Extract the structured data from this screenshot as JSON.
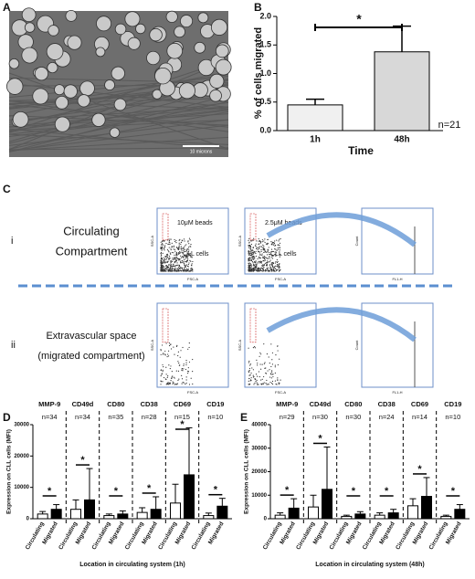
{
  "panel_a": {
    "label": "A",
    "scale_bar": "10 microns"
  },
  "panel_b": {
    "label": "B",
    "type": "bar",
    "ylabel": "% of cells migrated",
    "xlabel": "Time",
    "categories": [
      "1h",
      "48h"
    ],
    "values": [
      0.45,
      1.38
    ],
    "errors": [
      0.1,
      0.45
    ],
    "colors": [
      "#f0f0f0",
      "#d8d8d8"
    ],
    "ylim": [
      0,
      2
    ],
    "yticks": [
      {
        "value": 0,
        "label": "0.0"
      },
      {
        "value": 0.5,
        "label": "0.5"
      },
      {
        "value": 1,
        "label": "1.0"
      },
      {
        "value": 1.5,
        "label": "1.5"
      },
      {
        "value": 2,
        "label": "2.0"
      }
    ],
    "significance": "*",
    "annotation": "n=21"
  },
  "panel_c": {
    "label": "C",
    "rows": [
      {
        "numeral": "i",
        "title": [
          "Circulating",
          "Compartment"
        ],
        "plots": [
          {
            "y_axis": "SSC-A",
            "x_axis": "FSC-A",
            "gates": [
              "10μM beads",
              "CLL cells"
            ]
          },
          {
            "y_axis": "SSC-A",
            "x_axis": "FSC-A",
            "gates": [
              "2.5μM beads",
              "CLL cells"
            ]
          },
          {
            "y_axis": "Count",
            "x_axis": "FL1-H"
          }
        ]
      },
      {
        "numeral": "ii",
        "title": [
          "Extravascular space",
          "(migrated compartment)"
        ],
        "plots": [
          {
            "y_axis": "SSC-A",
            "x_axis": "FSC-A"
          },
          {
            "y_axis": "SSC-A",
            "x_axis": "FSC-A"
          },
          {
            "y_axis": "Count",
            "x_axis": "FL1-H"
          }
        ]
      }
    ]
  },
  "panel_d": {
    "label": "D",
    "type": "grouped_bar",
    "ylabel": "Expression on CLL cells (MFI)",
    "xlabel": "Location in circulating system (1h)",
    "markers": [
      "MMP-9",
      "CD49d",
      "CD80",
      "CD38",
      "CD69",
      "CD19"
    ],
    "n_labels": [
      "n=34",
      "n=34",
      "n=35",
      "n=28",
      "n=15",
      "n=10"
    ],
    "series": [
      {
        "name": "Circulating",
        "color": "#ffffff",
        "values": [
          1500,
          3000,
          1000,
          2000,
          5000,
          1000
        ],
        "errors": [
          800,
          3000,
          500,
          1500,
          6000,
          800
        ]
      },
      {
        "name": "Migrated",
        "color": "#000000",
        "values": [
          3000,
          6000,
          1500,
          3000,
          14000,
          4000
        ],
        "errors": [
          1500,
          10000,
          1000,
          4000,
          15000,
          2500
        ]
      }
    ],
    "ylim": [
      0,
      30000
    ],
    "yticks": [
      0,
      10000,
      20000,
      30000
    ],
    "significance": "*"
  },
  "panel_e": {
    "label": "E",
    "type": "grouped_bar",
    "ylabel": "Expression on CLL cells (MFI)",
    "xlabel": "Location in circulating system (48h)",
    "markers": [
      "MMP-9",
      "CD49d",
      "CD80",
      "CD38",
      "CD69",
      "CD19"
    ],
    "n_labels": [
      "n=29",
      "n=30",
      "n=30",
      "n=24",
      "n=14",
      "n=10"
    ],
    "series": [
      {
        "name": "Circulating",
        "color": "#ffffff",
        "values": [
          1500,
          5000,
          1000,
          1500,
          5500,
          1000
        ],
        "errors": [
          1000,
          5000,
          500,
          1000,
          3000,
          500
        ]
      },
      {
        "name": "Migrated",
        "color": "#000000",
        "values": [
          4500,
          12500,
          2000,
          2500,
          9500,
          4000
        ],
        "errors": [
          4000,
          18000,
          1000,
          1500,
          8000,
          2000
        ]
      }
    ],
    "ylim": [
      0,
      40000
    ],
    "yticks": [
      0,
      10000,
      20000,
      30000,
      40000
    ],
    "significance": "*"
  }
}
